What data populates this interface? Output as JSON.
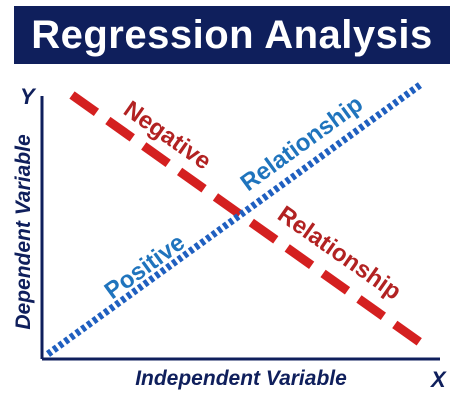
{
  "title": "Regression Analysis",
  "axes": {
    "y_letter": "Y",
    "x_letter": "X",
    "y_label": "Dependent Variable",
    "x_label": "Independent Variable"
  },
  "lines": {
    "negative": {
      "word1": "Negative",
      "word2": "Relationship",
      "color": "#d42020",
      "text_color": "#b22222"
    },
    "positive": {
      "word1": "Positive",
      "word2": "Relationship",
      "color": "#1f5fc0",
      "text_color": "#1f74bd"
    }
  },
  "colors": {
    "title_bg": "#0f1f5c",
    "axis": "#0f1f5c"
  }
}
